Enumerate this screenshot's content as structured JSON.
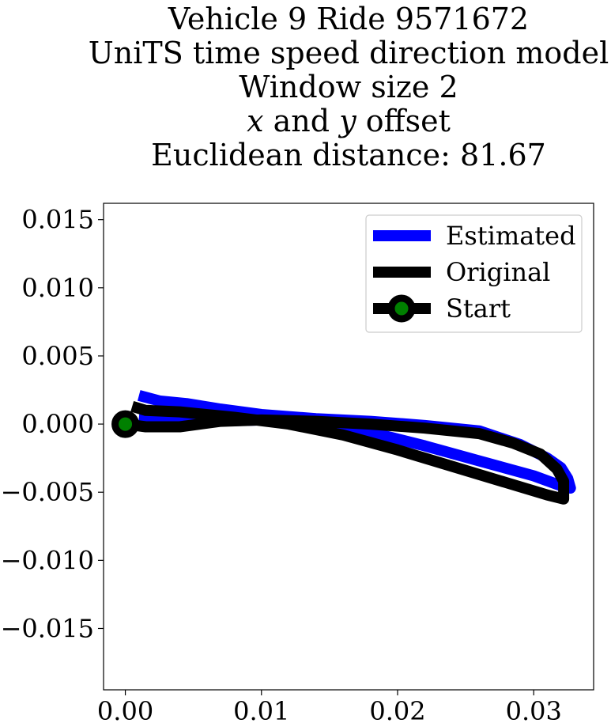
{
  "chart_data": {
    "type": "line",
    "title_lines": [
      "Vehicle 9 Ride 9571672",
      "UniTS time speed direction model",
      "Window size 2",
      "x and y offset",
      "Euclidean distance: 81.67"
    ],
    "title_math": {
      "var1": "x",
      "mid": " and ",
      "var2": "y",
      "tail": " offset"
    },
    "xlabel": "",
    "ylabel": "",
    "xlim": [
      -0.0016,
      0.0344
    ],
    "ylim": [
      -0.0195,
      0.0162
    ],
    "x_ticks": [
      0.0,
      0.01,
      0.02,
      0.03
    ],
    "x_tick_labels": [
      "0.00",
      "0.01",
      "0.02",
      "0.03"
    ],
    "y_ticks": [
      0.015,
      0.01,
      0.005,
      0.0,
      -0.005,
      -0.01,
      -0.015
    ],
    "y_tick_labels": [
      "0.015",
      "0.010",
      "0.005",
      "0.000",
      "−0.005",
      "−0.010",
      "−0.015"
    ],
    "grid": false,
    "legend": {
      "placement": "upper-right",
      "entries": [
        "Estimated",
        "Original",
        "Start"
      ]
    },
    "series": [
      {
        "name": "Estimated",
        "color": "#0000ff",
        "points": [
          [
            0.001,
            0.0021
          ],
          [
            0.0025,
            0.0017
          ],
          [
            0.0045,
            0.0015
          ],
          [
            0.007,
            0.0011
          ],
          [
            0.01,
            0.0007
          ],
          [
            0.014,
            0.0004
          ],
          [
            0.018,
            0.0002
          ],
          [
            0.022,
            -0.0001
          ],
          [
            0.026,
            -0.0005
          ],
          [
            0.029,
            -0.0015
          ],
          [
            0.031,
            -0.0025
          ],
          [
            0.032,
            -0.0032
          ],
          [
            0.0325,
            -0.004
          ],
          [
            0.0327,
            -0.0047
          ],
          [
            0.0322,
            -0.0046
          ],
          [
            0.03,
            -0.0038
          ],
          [
            0.026,
            -0.0027
          ],
          [
            0.022,
            -0.0016
          ],
          [
            0.018,
            -0.0006
          ],
          [
            0.014,
            0.0001
          ],
          [
            0.01,
            0.0003
          ],
          [
            0.006,
            0.0002
          ],
          [
            0.003,
            0.0003
          ],
          [
            0.001,
            0.0005
          ]
        ]
      },
      {
        "name": "Original",
        "color": "#000000",
        "points": [
          [
            0.0,
            0.0
          ],
          [
            0.0015,
            -0.0002
          ],
          [
            0.004,
            -0.0002
          ],
          [
            0.007,
            0.0002
          ],
          [
            0.01,
            0.0003
          ],
          [
            0.014,
            0.0002
          ],
          [
            0.018,
            0.0
          ],
          [
            0.022,
            -0.0003
          ],
          [
            0.026,
            -0.0007
          ],
          [
            0.0285,
            -0.0014
          ],
          [
            0.0305,
            -0.0022
          ],
          [
            0.0317,
            -0.0033
          ],
          [
            0.0322,
            -0.0042
          ],
          [
            0.0322,
            -0.0055
          ],
          [
            0.031,
            -0.0052
          ],
          [
            0.028,
            -0.0043
          ],
          [
            0.024,
            -0.0031
          ],
          [
            0.02,
            -0.0019
          ],
          [
            0.016,
            -0.0008
          ],
          [
            0.012,
            0.0
          ],
          [
            0.008,
            0.0005
          ],
          [
            0.004,
            0.0009
          ],
          [
            0.0015,
            0.001
          ],
          [
            0.0005,
            0.0013
          ]
        ]
      }
    ],
    "start_point": {
      "x": 0.0,
      "y": 0.0,
      "marker_color": "#000000",
      "face_color": "#008000"
    }
  }
}
